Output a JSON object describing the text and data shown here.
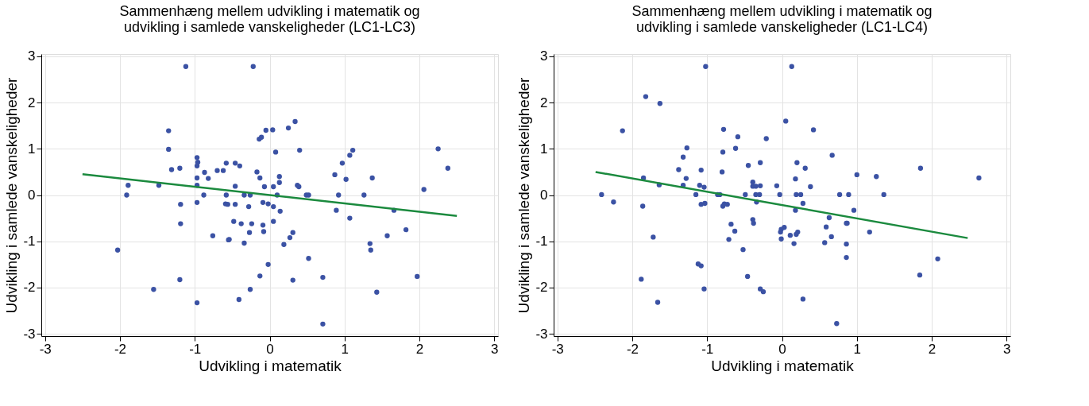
{
  "chart_data": [
    {
      "type": "scatter",
      "title": "Sammenhæng mellem udvikling i matematik og\nudvikling i samlede vanskeligheder (LC1-LC3)",
      "xlabel": "Udvikling i matematik",
      "ylabel": "Udvikling i samlede vanskeligheder",
      "xlim": [
        -3.05,
        3.05
      ],
      "ylim": [
        -3.05,
        3.05
      ],
      "xticks": [
        -3,
        -2,
        -1,
        0,
        1,
        2,
        3
      ],
      "yticks": [
        -3,
        -2,
        -1,
        0,
        1,
        2,
        3
      ],
      "grid": true,
      "legend": false,
      "marker": "circle",
      "series": [
        {
          "type": "scatter",
          "color": "#3b52a4",
          "x": [
            -1.12,
            -0.22,
            -1.35,
            -0.05,
            -0.14,
            -0.11,
            -1.35,
            -0.97,
            -0.96,
            -0.97,
            -1.31,
            -1.2,
            -0.87,
            -0.7,
            -0.62,
            -0.58,
            -0.46,
            -0.4,
            -0.82,
            -0.97,
            -0.17,
            -0.13,
            -0.07,
            -1.89,
            -1.48,
            -0.97,
            -0.46,
            -1.91,
            -0.88,
            -0.58,
            -0.34,
            -0.26,
            -1.19,
            -0.97,
            -0.59,
            -0.56,
            -0.46,
            -0.28,
            -0.09,
            -0.02,
            -1.19,
            -0.76,
            -0.55,
            -0.54,
            -0.48,
            -0.38,
            -0.24,
            -0.27,
            -0.09,
            -0.08,
            -0.34,
            -2.03,
            -0.02,
            -0.13,
            -1.2,
            -0.26,
            -1.55,
            -0.41,
            -0.97,
            0.04,
            0.25,
            0.34,
            0.08,
            0.4,
            0.13,
            0.13,
            0.05,
            0.37,
            0.39,
            0.1,
            0.49,
            0.52,
            0.05,
            0.14,
            0.05,
            0.31,
            0.27,
            0.19,
            0.52,
            0.31,
            0.71,
            0.71,
            0.87,
            0.97,
            1.07,
            1.11,
            1.02,
            0.92,
            1.26,
            1.37,
            0.89,
            1.07,
            1.66,
            1.82,
            1.57,
            1.34,
            1.35,
            1.43,
            1.97,
            2.06,
            2.25,
            2.38
          ],
          "values": [
            2.78,
            2.78,
            1.39,
            1.4,
            1.21,
            1.25,
            0.99,
            0.81,
            0.71,
            0.63,
            0.55,
            0.58,
            0.49,
            0.53,
            0.53,
            0.69,
            0.69,
            0.63,
            0.36,
            0.37,
            0.5,
            0.37,
            0.18,
            0.21,
            0.21,
            0.21,
            0.19,
            0.0,
            0.0,
            0.0,
            0.0,
            0.0,
            -0.2,
            -0.16,
            -0.19,
            -0.2,
            -0.2,
            -0.25,
            -0.16,
            -0.19,
            -0.62,
            -0.88,
            -0.97,
            -0.96,
            -0.57,
            -0.62,
            -0.62,
            -0.81,
            -0.65,
            -0.79,
            -1.04,
            -1.19,
            -1.5,
            -1.75,
            -1.83,
            -2.04,
            -2.04,
            -2.26,
            -2.33,
            1.41,
            1.45,
            1.59,
            0.93,
            0.97,
            0.4,
            0.27,
            0.18,
            0.21,
            0.18,
            0.0,
            0.0,
            0.0,
            -0.25,
            -0.35,
            -0.57,
            -0.81,
            -0.92,
            -1.07,
            -1.37,
            -1.84,
            -1.78,
            -2.79,
            0.44,
            0.69,
            0.86,
            0.97,
            0.34,
            0.0,
            0.0,
            0.37,
            -0.33,
            -0.5,
            -0.33,
            -0.75,
            -0.88,
            -1.05,
            -1.19,
            -2.1,
            -1.76,
            0.12,
            1.0,
            0.58
          ]
        },
        {
          "type": "line",
          "color": "#1b8a3e",
          "marker": "none",
          "x": [
            -2.5,
            2.5
          ],
          "values": [
            0.45,
            -0.45
          ]
        }
      ]
    },
    {
      "type": "scatter",
      "title": "Sammenhæng mellem udvikling i matematik og\nudvikling i samlede vanskeligheder (LC1-LC4)",
      "xlabel": "Udvikling i matematik",
      "ylabel": "Udvikling i samlede vanskeligheder",
      "xlim": [
        -3.05,
        3.05
      ],
      "ylim": [
        -3.05,
        3.05
      ],
      "xticks": [
        -3,
        -2,
        -1,
        0,
        1,
        2,
        3
      ],
      "yticks": [
        -3,
        -2,
        -1,
        0,
        1,
        2,
        3
      ],
      "grid": true,
      "legend": false,
      "marker": "circle",
      "series": [
        {
          "type": "scatter",
          "color": "#3b52a4",
          "x": [
            -1.02,
            -1.82,
            -1.63,
            -2.13,
            -0.78,
            -0.59,
            -0.21,
            -1.27,
            -0.79,
            -0.62,
            -1.32,
            -0.45,
            -0.29,
            -1.38,
            -1.08,
            -0.8,
            -1.85,
            -1.28,
            -1.64,
            -1.32,
            -1.1,
            -1.04,
            -0.39,
            -0.39,
            -0.35,
            -0.29,
            -0.07,
            -2.41,
            -1.15,
            -0.86,
            -0.83,
            -0.49,
            -0.35,
            -0.3,
            -2.25,
            -1.86,
            -1.08,
            -1.03,
            -0.79,
            -0.77,
            -0.73,
            -0.34,
            -0.39,
            -0.38,
            -0.68,
            -0.63,
            -0.71,
            -1.72,
            -0.52,
            -1.12,
            -1.08,
            -0.46,
            -1.88,
            -1.04,
            -0.29,
            -0.25,
            -1.66,
            0.13,
            0.05,
            0.42,
            0.67,
            0.2,
            0.31,
            0.18,
            0.38,
            -0.03,
            0.19,
            0.25,
            0.77,
            0.89,
            1.0,
            1.26,
            1.36,
            1.85,
            2.63,
            0.28,
            0.18,
            0.96,
            0.63,
            0.86,
            0.87,
            0.59,
            0.03,
            -0.01,
            -0.02,
            -0.01,
            0.11,
            0.19,
            0.21,
            0.66,
            0.16,
            0.57,
            0.86,
            1.17,
            0.86,
            2.08,
            1.84,
            0.28,
            0.73
          ],
          "values": [
            2.78,
            2.13,
            1.98,
            1.39,
            1.42,
            1.26,
            1.22,
            1.02,
            0.93,
            1.01,
            0.82,
            0.64,
            0.7,
            0.55,
            0.54,
            0.5,
            0.37,
            0.36,
            0.22,
            0.21,
            0.21,
            0.17,
            0.28,
            0.19,
            0.19,
            0.2,
            0.2,
            0.01,
            0.01,
            0.01,
            0.01,
            0.01,
            0.01,
            0.01,
            -0.15,
            -0.24,
            -0.2,
            -0.18,
            -0.24,
            -0.19,
            -0.2,
            -0.15,
            -0.53,
            -0.61,
            -0.63,
            -0.78,
            -0.96,
            -0.91,
            -1.18,
            -1.49,
            -1.53,
            -1.76,
            -1.82,
            -2.03,
            -2.03,
            -2.09,
            -2.32,
            2.78,
            1.6,
            1.41,
            0.86,
            0.7,
            0.58,
            0.35,
            0.18,
            0.01,
            0.01,
            0.01,
            0.01,
            0.01,
            0.44,
            0.4,
            0.01,
            0.58,
            0.37,
            -0.18,
            -0.33,
            -0.33,
            -0.49,
            -0.61,
            -0.61,
            -0.69,
            -0.7,
            -0.74,
            -0.8,
            -0.95,
            -0.87,
            -0.85,
            -0.8,
            -0.9,
            -1.05,
            -1.03,
            -1.06,
            -0.8,
            -1.35,
            -1.38,
            -1.73,
            -2.25,
            -2.78
          ]
        },
        {
          "type": "line",
          "color": "#1b8a3e",
          "marker": "none",
          "x": [
            -2.49,
            2.48
          ],
          "values": [
            0.5,
            -0.93
          ]
        }
      ]
    }
  ]
}
